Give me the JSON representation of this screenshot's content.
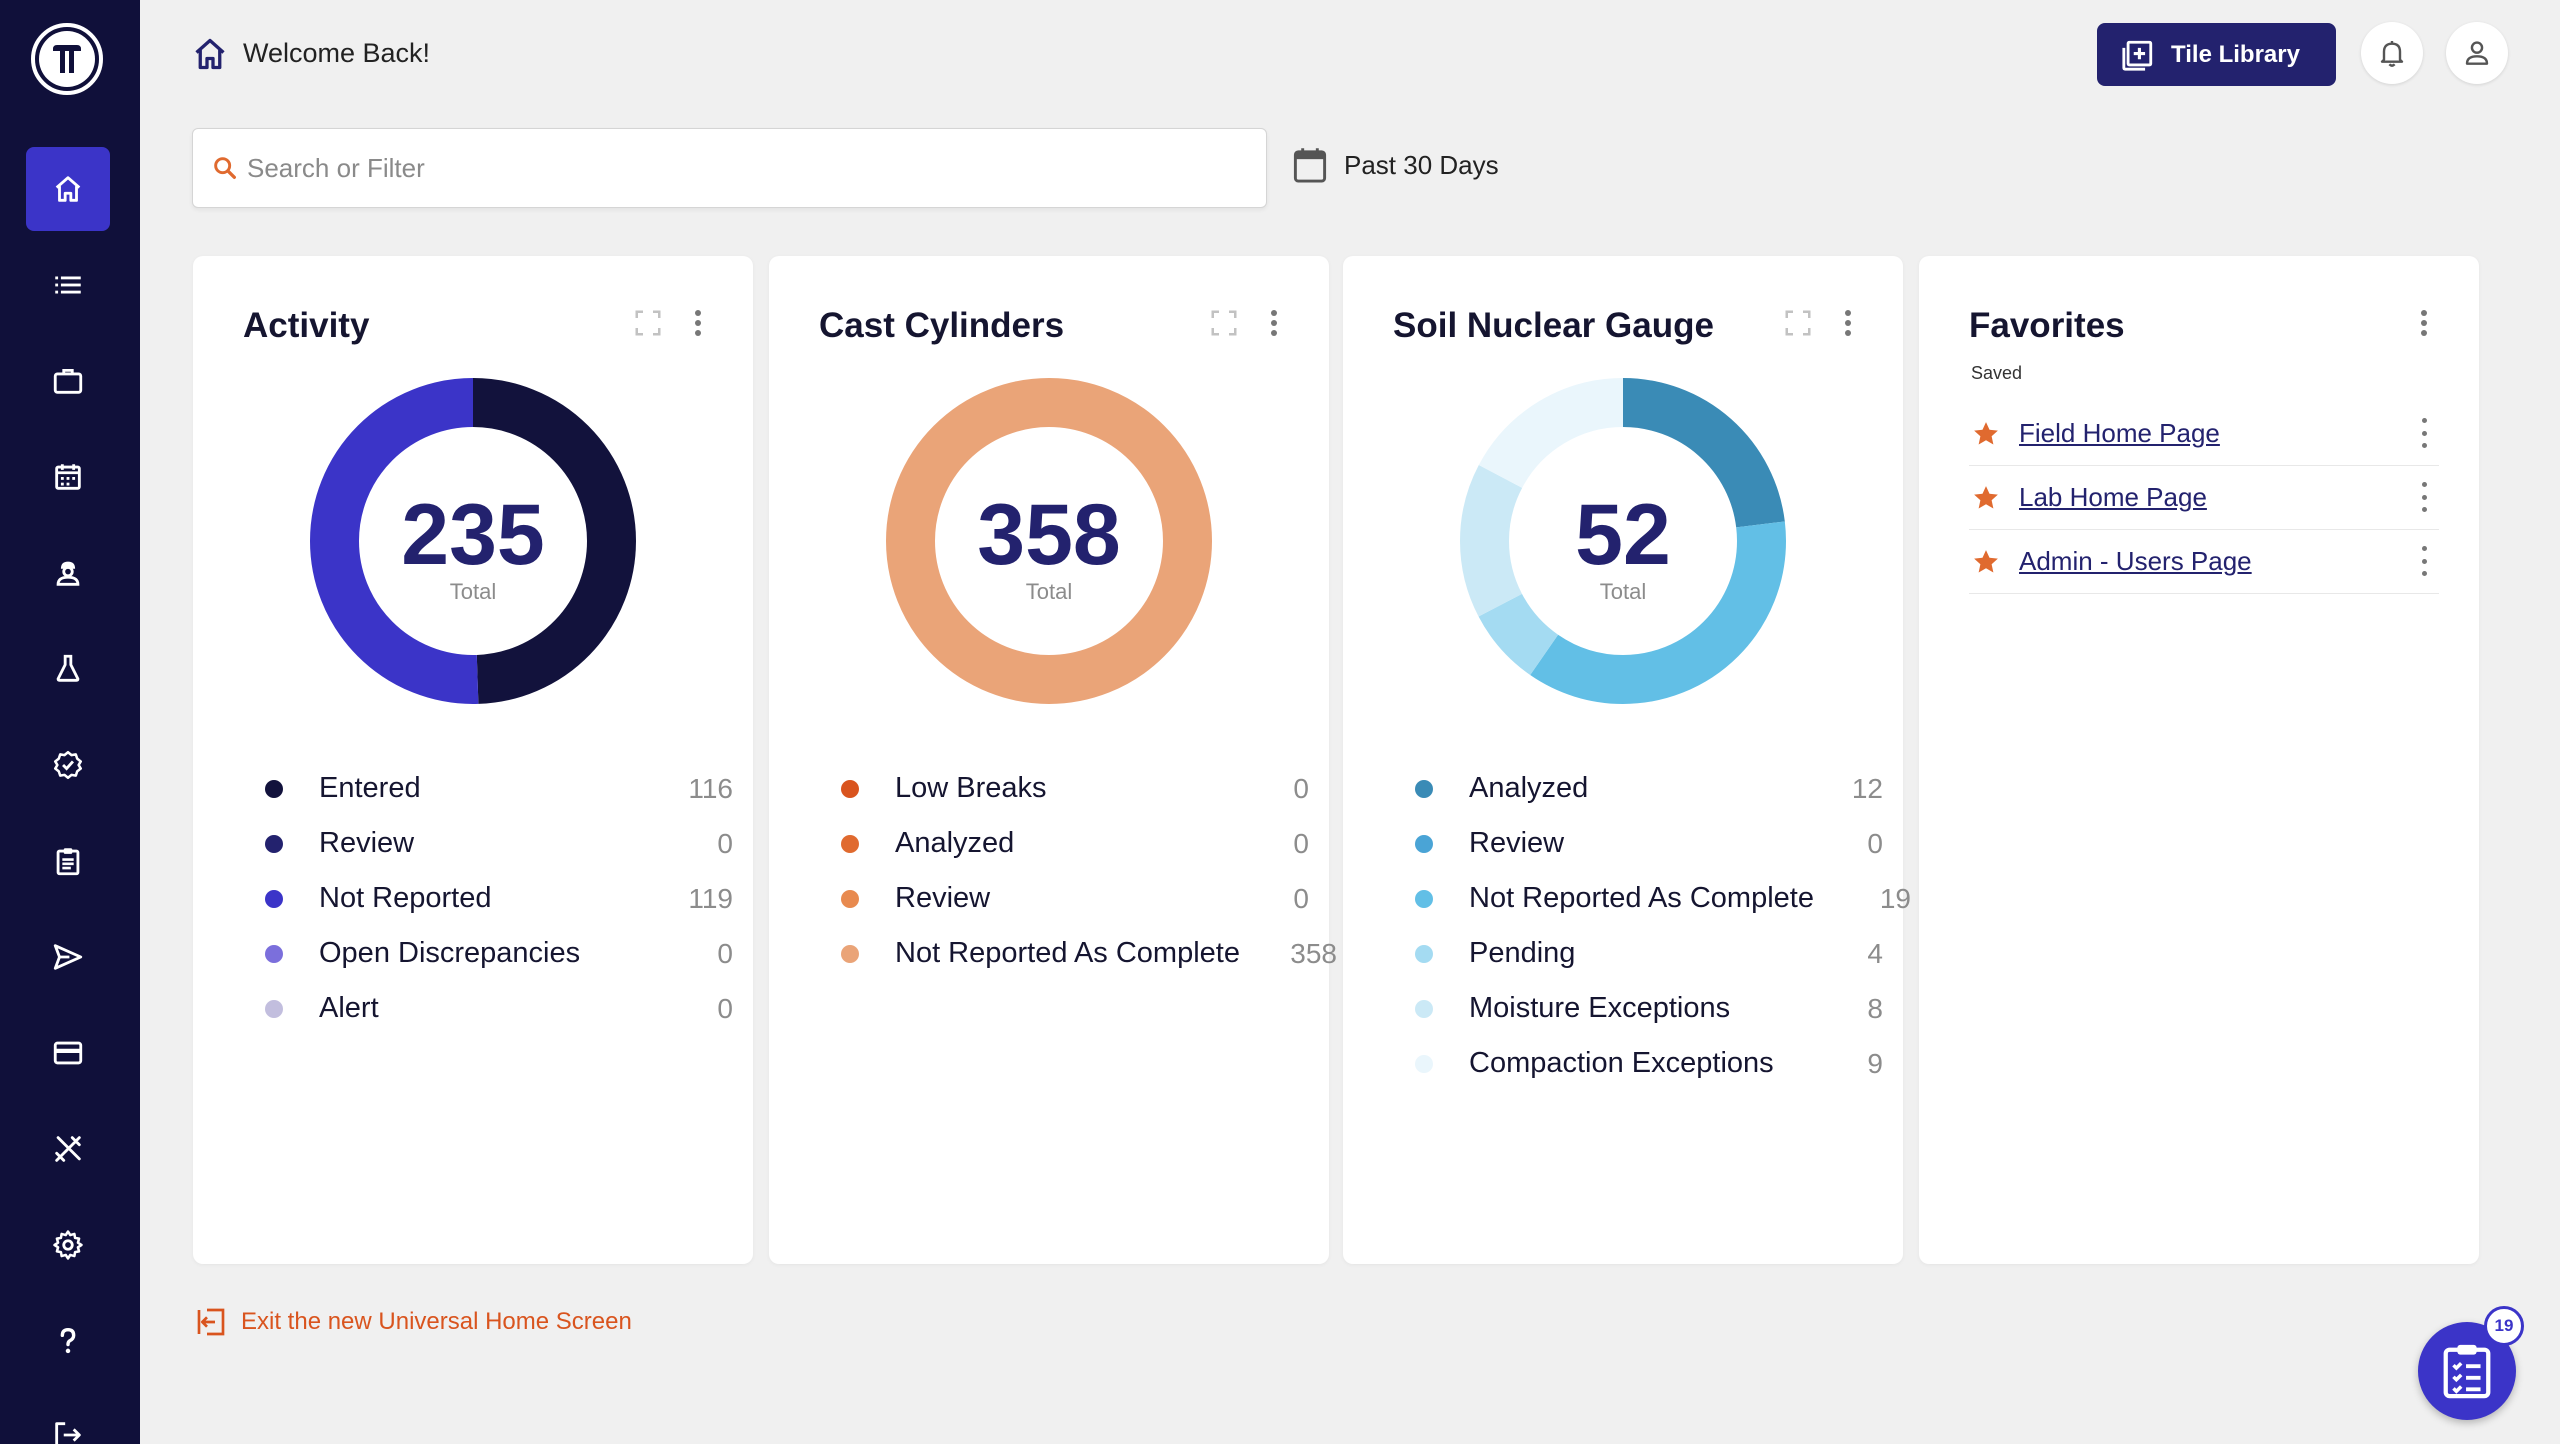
{
  "header": {
    "welcome": "Welcome Back!",
    "tile_library_label": "Tile Library"
  },
  "sidebar": {
    "items": [
      {
        "icon": "home-icon",
        "active": true
      },
      {
        "icon": "list-icon",
        "active": false
      },
      {
        "icon": "briefcase-icon",
        "active": false
      },
      {
        "icon": "calendar-icon",
        "active": false
      },
      {
        "icon": "person-icon",
        "active": false
      },
      {
        "icon": "flask-icon",
        "active": false
      },
      {
        "icon": "badge-check-icon",
        "active": false
      },
      {
        "icon": "clipboard-icon",
        "active": false
      },
      {
        "icon": "send-icon",
        "active": false
      },
      {
        "icon": "credit-card-icon",
        "active": false
      },
      {
        "icon": "tools-icon",
        "active": false
      },
      {
        "icon": "gear-icon",
        "active": false
      },
      {
        "icon": "help-icon",
        "active": false
      },
      {
        "icon": "logout-icon",
        "active": false
      }
    ]
  },
  "search": {
    "placeholder": "Search or Filter",
    "value": ""
  },
  "date_range": {
    "label": "Past 30 Days"
  },
  "cards": {
    "activity": {
      "title": "Activity",
      "total": "235",
      "total_label": "Total",
      "legend": [
        {
          "label": "Entered",
          "value": "116",
          "color": "#12123c"
        },
        {
          "label": "Review",
          "value": "0",
          "color": "#23226e"
        },
        {
          "label": "Not Reported",
          "value": "119",
          "color": "#3b34c8"
        },
        {
          "label": "Open Discrepancies",
          "value": "0",
          "color": "#7b6fdc"
        },
        {
          "label": "Alert",
          "value": "0",
          "color": "#c2bede"
        }
      ]
    },
    "cast_cylinders": {
      "title": "Cast Cylinders",
      "total": "358",
      "total_label": "Total",
      "legend": [
        {
          "label": "Low Breaks",
          "value": "0",
          "color": "#d9541e"
        },
        {
          "label": "Analyzed",
          "value": "0",
          "color": "#e06a2f"
        },
        {
          "label": "Review",
          "value": "0",
          "color": "#e88a4f"
        },
        {
          "label": "Not Reported As Complete",
          "value": "358",
          "color": "#eaa478"
        }
      ]
    },
    "soil_nuclear_gauge": {
      "title": "Soil Nuclear Gauge",
      "total": "52",
      "total_label": "Total",
      "legend": [
        {
          "label": "Analyzed",
          "value": "12",
          "color": "#3a8bb6"
        },
        {
          "label": "Review",
          "value": "0",
          "color": "#4aa4d6"
        },
        {
          "label": "Not Reported As Complete",
          "value": "19",
          "color": "#62bfe6"
        },
        {
          "label": "Pending",
          "value": "4",
          "color": "#a4dbf2"
        },
        {
          "label": "Moisture Exceptions",
          "value": "8",
          "color": "#cbe9f6"
        },
        {
          "label": "Compaction Exceptions",
          "value": "9",
          "color": "#eaf6fc"
        }
      ]
    },
    "favorites": {
      "title": "Favorites",
      "subtitle": "Saved",
      "items": [
        {
          "label": "Field Home Page"
        },
        {
          "label": "Lab Home Page"
        },
        {
          "label": "Admin - Users Page"
        }
      ]
    }
  },
  "footer": {
    "exit_label": "Exit the new Universal Home Screen",
    "tasks_badge": "19"
  },
  "colors": {
    "sidebar_bg": "#10103a",
    "accent": "#3b34c8",
    "brand_dark": "#23226e",
    "orange": "#d9541e"
  }
}
